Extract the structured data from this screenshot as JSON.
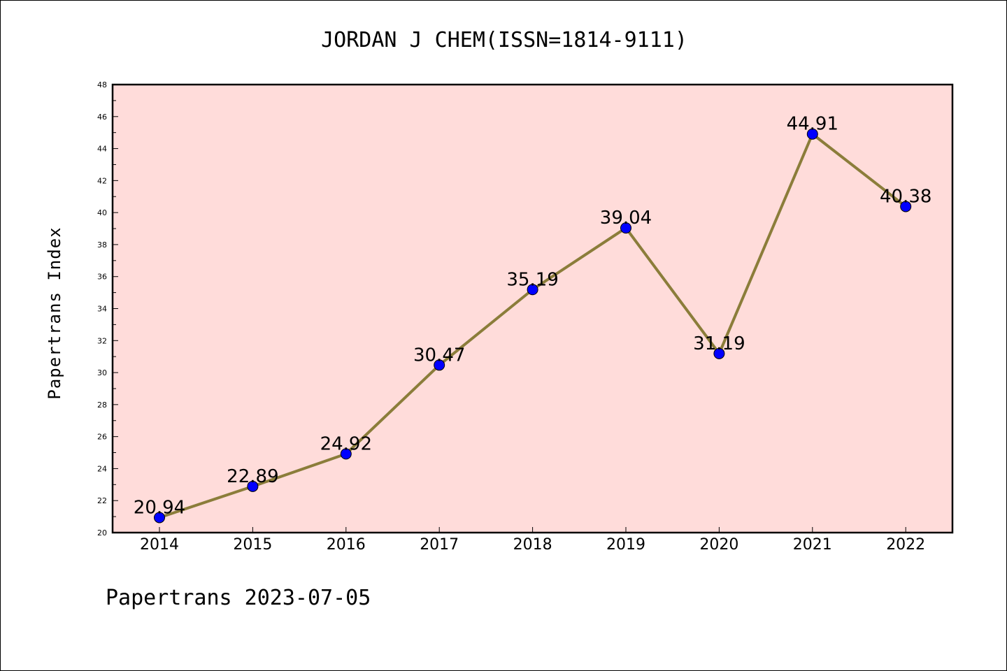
{
  "chart_data": {
    "type": "line",
    "title": "JORDAN J CHEM(ISSN=1814-9111)",
    "ylabel": "Papertrans Index",
    "xlabel": "",
    "footer": "Papertrans 2023-07-05",
    "x": [
      "2014",
      "2015",
      "2016",
      "2017",
      "2018",
      "2019",
      "2020",
      "2021",
      "2022"
    ],
    "series": [
      {
        "values": [
          20.94,
          22.89,
          24.92,
          30.47,
          35.19,
          39.04,
          31.19,
          44.91,
          40.38
        ],
        "labels": [
          "20.94",
          "22.89",
          "24.92",
          "30.47",
          "35.19",
          "39.04",
          "31.19",
          "44.91",
          "40.38"
        ],
        "line_color": "#8B7D3A",
        "marker_color": "#0000FF"
      }
    ],
    "ylim": [
      20,
      48
    ],
    "yticks": [
      "20",
      "22",
      "24",
      "26",
      "28",
      "30",
      "32",
      "34",
      "36",
      "38",
      "40",
      "42",
      "44",
      "46",
      "48"
    ],
    "grid": false,
    "plot_background": "#FFDCDA"
  }
}
